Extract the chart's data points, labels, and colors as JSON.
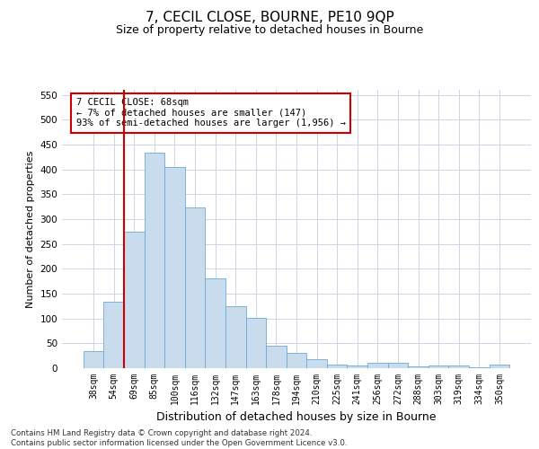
{
  "title": "7, CECIL CLOSE, BOURNE, PE10 9QP",
  "subtitle": "Size of property relative to detached houses in Bourne",
  "xlabel": "Distribution of detached houses by size in Bourne",
  "ylabel": "Number of detached properties",
  "categories": [
    "38sqm",
    "54sqm",
    "69sqm",
    "85sqm",
    "100sqm",
    "116sqm",
    "132sqm",
    "147sqm",
    "163sqm",
    "178sqm",
    "194sqm",
    "210sqm",
    "225sqm",
    "241sqm",
    "256sqm",
    "272sqm",
    "288sqm",
    "303sqm",
    "319sqm",
    "334sqm",
    "350sqm"
  ],
  "values": [
    35,
    133,
    275,
    433,
    405,
    323,
    181,
    125,
    102,
    46,
    30,
    18,
    7,
    5,
    10,
    10,
    4,
    5,
    5,
    2,
    7
  ],
  "bar_color": "#c8dced",
  "bar_edge_color": "#6aaad4",
  "highlight_line_color": "#cc0000",
  "highlight_line_index": 1.5,
  "annotation_text_line1": "7 CECIL CLOSE: 68sqm",
  "annotation_text_line2": "← 7% of detached houses are smaller (147)",
  "annotation_text_line3": "93% of semi-detached houses are larger (1,956) →",
  "annotation_box_color": "#cc0000",
  "ylim": [
    0,
    560
  ],
  "yticks": [
    0,
    50,
    100,
    150,
    200,
    250,
    300,
    350,
    400,
    450,
    500,
    550
  ],
  "footnote_line1": "Contains HM Land Registry data © Crown copyright and database right 2024.",
  "footnote_line2": "Contains public sector information licensed under the Open Government Licence v3.0.",
  "background_color": "#ffffff",
  "grid_color": "#ccd6e8",
  "title_fontsize": 11,
  "subtitle_fontsize": 9,
  "xlabel_fontsize": 9,
  "ylabel_fontsize": 8,
  "tick_fontsize": 7,
  "annot_fontsize": 7.5
}
